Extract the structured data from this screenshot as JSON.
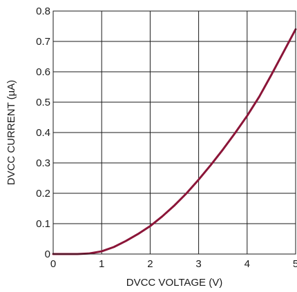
{
  "chart_data": {
    "type": "line",
    "title": "",
    "xlabel": "DVCC VOLTAGE (V)",
    "ylabel": "DVCC CURRENT (µA)",
    "xlim": [
      0,
      5
    ],
    "ylim": [
      0,
      0.8
    ],
    "x_ticks": [
      "0",
      "1",
      "2",
      "3",
      "4",
      "5"
    ],
    "y_ticks": [
      "0",
      "0.1",
      "0.2",
      "0.3",
      "0.4",
      "0.5",
      "0.6",
      "0.7",
      "0.8"
    ],
    "grid": true,
    "line_color": "#8b1538",
    "series": [
      {
        "x": [
          0,
          0.25,
          0.5,
          0.75,
          1.0,
          1.25,
          1.5,
          1.75,
          2.0,
          2.25,
          2.5,
          2.75,
          3.0,
          3.25,
          3.5,
          3.75,
          4.0,
          4.25,
          4.5,
          4.75,
          5.0
        ],
        "y": [
          0.0,
          0.0,
          0.0,
          0.002,
          0.009,
          0.023,
          0.043,
          0.066,
          0.092,
          0.124,
          0.16,
          0.2,
          0.245,
          0.293,
          0.344,
          0.398,
          0.455,
          0.518,
          0.59,
          0.665,
          0.74
        ]
      }
    ]
  }
}
